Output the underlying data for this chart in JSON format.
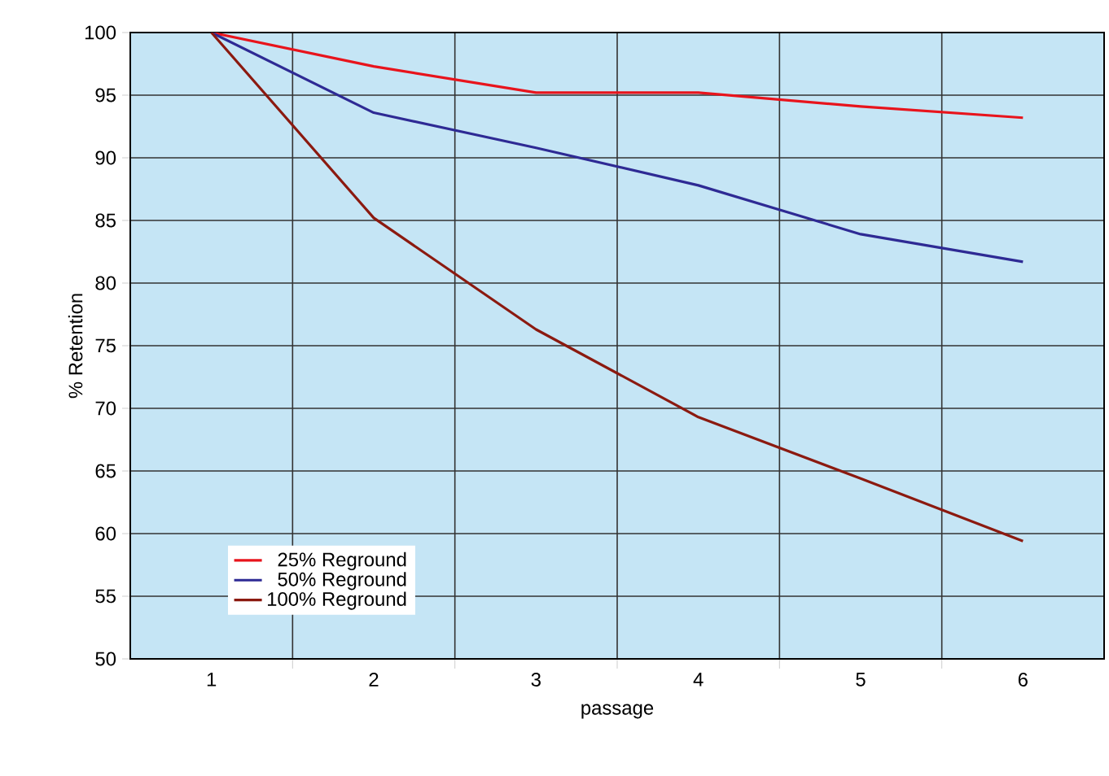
{
  "chart_data": {
    "type": "line",
    "xlabel": "passage",
    "ylabel": "% Retention",
    "categories": [
      "1",
      "2",
      "3",
      "4",
      "5",
      "6"
    ],
    "series": [
      {
        "name": "25% Reground",
        "color": "#e8141c",
        "values": [
          100,
          97.3,
          95.2,
          95.2,
          94.1,
          93.2
        ]
      },
      {
        "name": "50% Reground",
        "color": "#2e2a94",
        "values": [
          100,
          93.6,
          90.8,
          87.8,
          83.9,
          81.7
        ]
      },
      {
        "name": "100% Reground",
        "color": "#8b1a10",
        "values": [
          100,
          85.2,
          76.3,
          69.3,
          64.4,
          59.4
        ]
      }
    ],
    "ylim": [
      50,
      100
    ],
    "yticks": [
      50,
      55,
      60,
      65,
      70,
      75,
      80,
      85,
      90,
      95,
      100
    ],
    "grid": true,
    "legend": "bottom left",
    "marker": "none",
    "line_style": "solid"
  }
}
